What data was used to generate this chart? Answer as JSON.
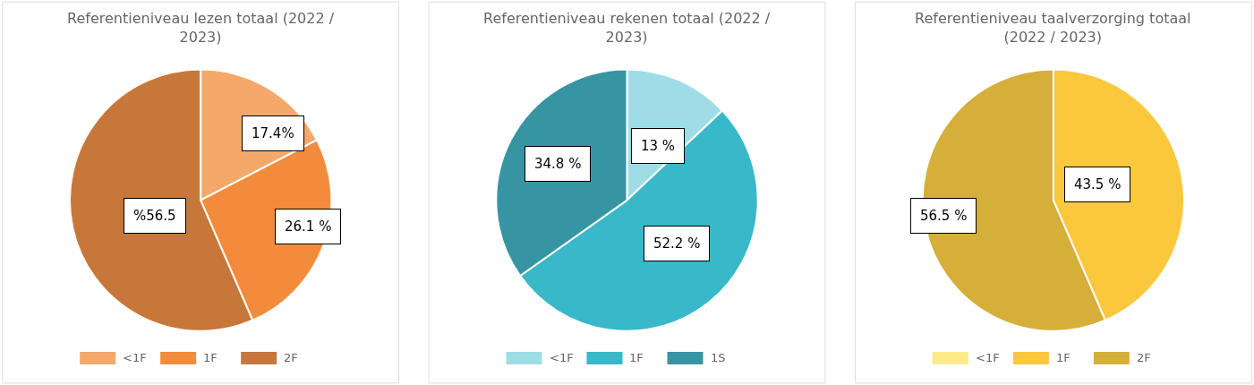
{
  "chart_data": [
    {
      "type": "pie",
      "title": "Referentieniveau lezen totaal (2022 / 2023)",
      "categories": [
        "<1F",
        "1F",
        "2F"
      ],
      "values": [
        17.4,
        26.1,
        56.5
      ],
      "colors": [
        "#f4a96b",
        "#f28c3c",
        "#c8773a"
      ],
      "value_labels": [
        "17.4%",
        "26.1 %",
        "%56.5"
      ],
      "legend": "bottom"
    },
    {
      "type": "pie",
      "title": "Referentieniveau rekenen totaal (2022 / 2023)",
      "categories": [
        "<1F",
        "1F",
        "1S"
      ],
      "values": [
        13,
        52.2,
        34.8
      ],
      "colors": [
        "#9fdde6",
        "#38b8c9",
        "#3795a3"
      ],
      "value_labels": [
        "13 %",
        "52.2 %",
        "34.8 %"
      ],
      "legend": "bottom"
    },
    {
      "type": "pie",
      "title": "Referentieniveau taalverzorging totaal (2022 / 2023)",
      "categories": [
        "<1F",
        "1F",
        "2F"
      ],
      "values": [
        0,
        43.5,
        56.5
      ],
      "colors": [
        "#fbe98a",
        "#fac73d",
        "#d6ae3a"
      ],
      "value_labels": [
        null,
        "43.5 %",
        "56.5 %"
      ],
      "legend": "bottom"
    }
  ]
}
